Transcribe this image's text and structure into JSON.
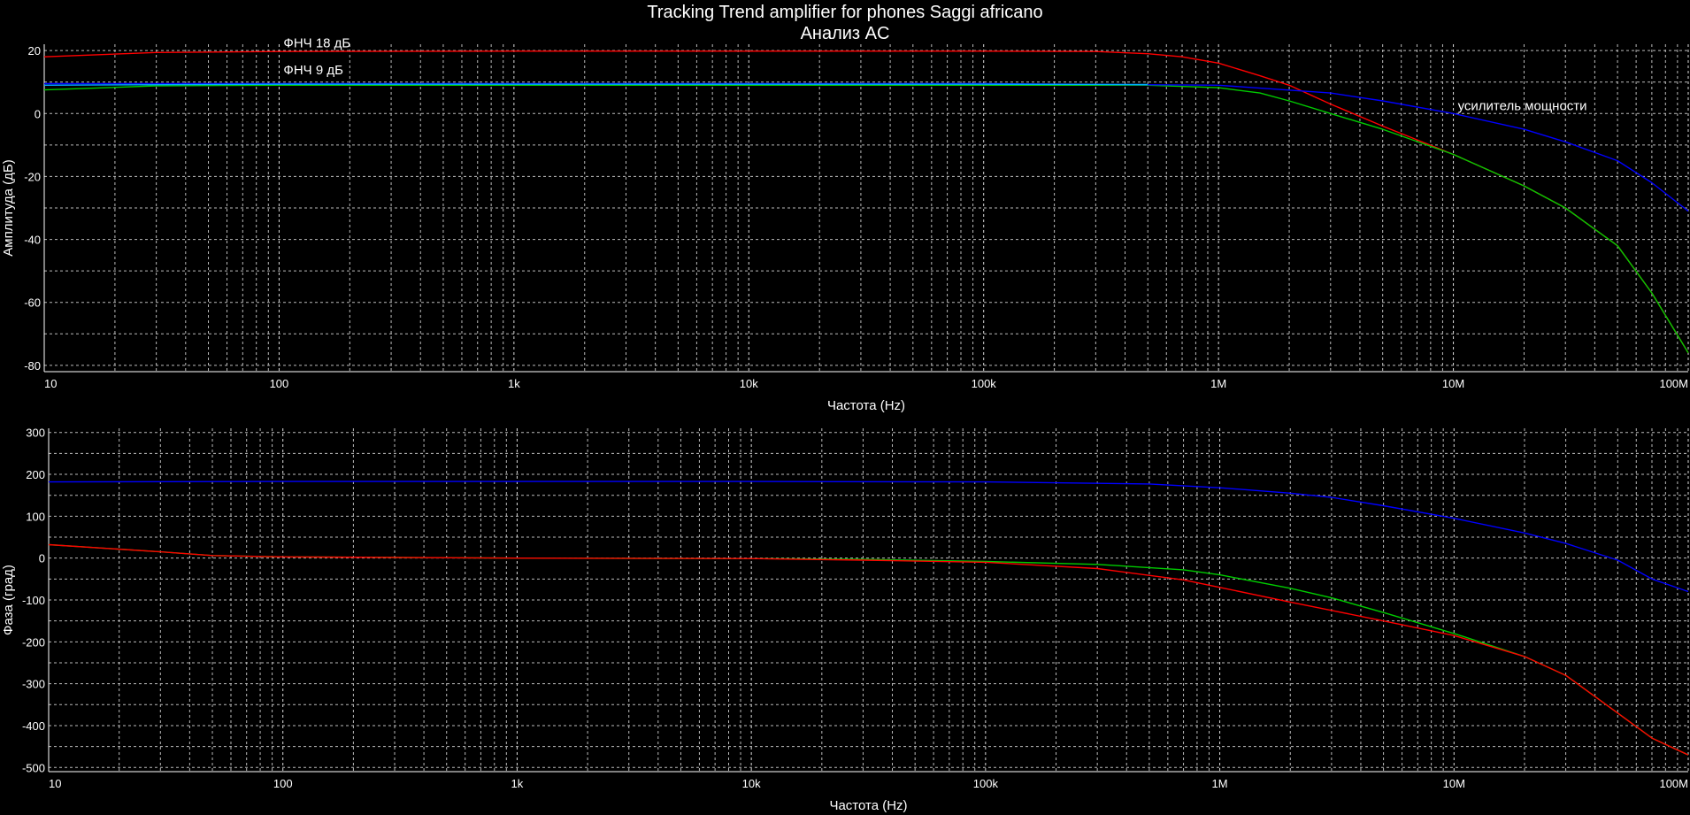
{
  "title": "Tracking Trend amplifier for phones Saggi africano",
  "subtitle": "Анализ AC",
  "chart_data": [
    {
      "type": "line",
      "panel": "amplitude",
      "xscale": "log",
      "xlim": [
        10,
        100000000
      ],
      "ylim": [
        -82,
        22
      ],
      "xticks": [
        10,
        100,
        1000,
        10000,
        100000,
        1000000,
        10000000,
        100000000
      ],
      "xtick_labels": [
        "10",
        "100",
        "1k",
        "10k",
        "100k",
        "1M",
        "10M",
        "100M"
      ],
      "yticks": [
        20,
        0,
        -20,
        -40,
        -60,
        -80
      ],
      "ytick_labels": [
        "20",
        "0",
        "-20",
        "-40",
        "-60",
        "-80"
      ],
      "xlabel": "Частота (Hz)",
      "ylabel": "Амплитуда (дБ)",
      "grid": true,
      "series": [
        {
          "color": "#ff0000",
          "x": [
            10,
            30,
            100,
            1000,
            10000,
            100000,
            300000,
            500000,
            700000,
            1000000,
            1500000,
            2000000,
            3000000,
            5000000,
            10000000,
            20000000,
            30000000,
            50000000,
            70000000,
            100000000
          ],
          "y": [
            18,
            19.4,
            19.7,
            19.8,
            19.8,
            19.8,
            19.7,
            19,
            18,
            16,
            12,
            9,
            3,
            -4,
            -13,
            -23,
            -30,
            -42,
            -57,
            -76
          ]
        },
        {
          "color": "#00cc00",
          "x": [
            10,
            30,
            100,
            1000,
            10000,
            100000,
            500000,
            1000000,
            1500000,
            2000000,
            3000000,
            5000000,
            10000000,
            20000000,
            30000000,
            50000000,
            70000000,
            100000000
          ],
          "y": [
            7.5,
            8.8,
            9,
            9,
            9,
            9,
            9,
            8.2,
            6.5,
            4,
            0,
            -5,
            -13,
            -23,
            -30,
            -42,
            -57,
            -76
          ]
        },
        {
          "color": "#0000ff",
          "x": [
            10,
            100,
            1000,
            10000,
            100000,
            1000000,
            3000000,
            5000000,
            10000000,
            20000000,
            30000000,
            50000000,
            70000000,
            100000000
          ],
          "y": [
            9.5,
            9.5,
            9.5,
            9.5,
            9.5,
            9,
            6.5,
            4,
            0,
            -5,
            -9,
            -15,
            -22,
            -31
          ]
        },
        {
          "color": "#00aaff",
          "x": [
            10,
            100,
            1000,
            10000,
            100000,
            500000
          ],
          "y": [
            9,
            9.3,
            9.3,
            9.3,
            9.3,
            9.2
          ]
        }
      ],
      "annotations": [
        {
          "text": "ФНЧ 18 дБ",
          "x": 100,
          "y": 21
        },
        {
          "text": "ФНЧ  9 дБ",
          "x": 100,
          "y": 12.5
        },
        {
          "text": "усилитель мощности",
          "x": 10000000,
          "y": 1
        }
      ]
    },
    {
      "type": "line",
      "panel": "phase",
      "xscale": "log",
      "xlim": [
        10,
        100000000
      ],
      "ylim": [
        -510,
        310
      ],
      "xticks": [
        10,
        100,
        1000,
        10000,
        100000,
        1000000,
        10000000,
        100000000
      ],
      "xtick_labels": [
        "10",
        "100",
        "1k",
        "10k",
        "100k",
        "1M",
        "10M",
        "100M"
      ],
      "yticks": [
        300,
        200,
        100,
        0,
        -100,
        -200,
        -300,
        -400,
        -500
      ],
      "ytick_labels": [
        "300",
        "200",
        "100",
        "0",
        "-100",
        "-200",
        "-300",
        "-400",
        "-500"
      ],
      "xlabel": "Частота (Hz)",
      "ylabel": "Фаза (град)",
      "grid": true,
      "series": [
        {
          "color": "#0000ff",
          "x": [
            10,
            100,
            1000,
            10000,
            100000,
            500000,
            1000000,
            2000000,
            3000000,
            5000000,
            10000000,
            20000000,
            30000000,
            50000000,
            70000000,
            100000000
          ],
          "y": [
            182,
            183,
            183,
            183,
            182,
            177,
            168,
            155,
            145,
            125,
            95,
            60,
            35,
            -5,
            -50,
            -80
          ]
        },
        {
          "color": "#00cc00",
          "x": [
            10,
            30,
            50,
            100,
            1000,
            10000,
            30000,
            100000,
            300000,
            700000,
            1000000,
            2000000,
            3000000,
            5000000,
            10000000,
            20000000,
            30000000,
            50000000,
            70000000,
            100000000
          ],
          "y": [
            32,
            15,
            6,
            3,
            0,
            -1,
            -3,
            -8,
            -15,
            -28,
            -40,
            -72,
            -95,
            -130,
            -180,
            -235,
            -280,
            -370,
            -430,
            -470
          ]
        },
        {
          "color": "#ff0000",
          "x": [
            10,
            30,
            50,
            100,
            1000,
            10000,
            30000,
            100000,
            300000,
            700000,
            1000000,
            2000000,
            3000000,
            5000000,
            10000000,
            20000000,
            30000000,
            50000000,
            70000000,
            100000000
          ],
          "y": [
            32,
            15,
            6,
            3,
            0,
            -1,
            -5,
            -10,
            -25,
            -52,
            -70,
            -105,
            -125,
            -150,
            -185,
            -235,
            -280,
            -370,
            -430,
            -470
          ]
        }
      ]
    }
  ]
}
